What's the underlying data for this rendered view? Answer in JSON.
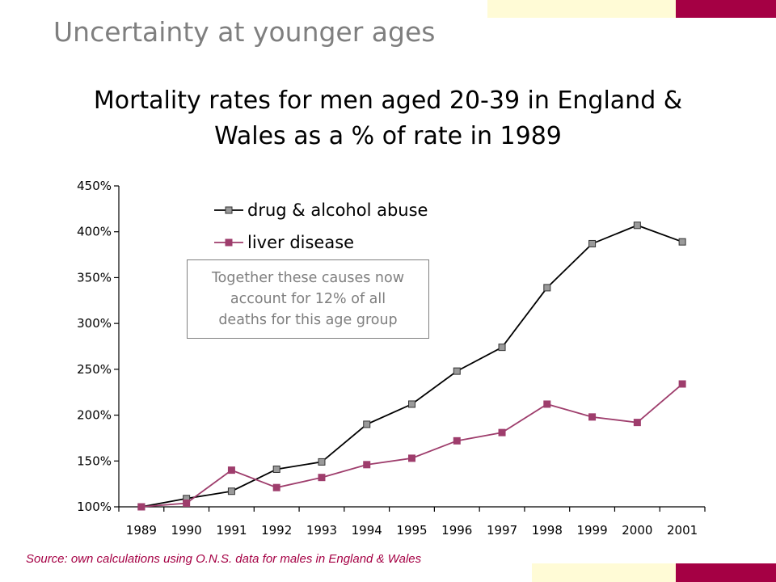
{
  "slide": {
    "title": "Uncertainty at younger ages",
    "source": "Source: own calculations using O.N.S. data for males in England & Wales"
  },
  "colors": {
    "accent": "#A50044",
    "cream": "#FFFBD6",
    "title_gray": "#7f7f7f",
    "series_drug": "#000000",
    "series_liver": "#9E3D6C"
  },
  "chart_data": {
    "type": "line",
    "title_lines": [
      "Mortality rates for men aged 20-39 in England &",
      "Wales as a % of rate in 1989"
    ],
    "categories": [
      "1989",
      "1990",
      "1991",
      "1992",
      "1993",
      "1994",
      "1995",
      "1996",
      "1997",
      "1998",
      "1999",
      "2000",
      "2001"
    ],
    "series": [
      {
        "name": "drug & alcohol abuse",
        "values": [
          100,
          109,
          117,
          141,
          149,
          190,
          212,
          248,
          274,
          339,
          387,
          407,
          389
        ]
      },
      {
        "name": "liver disease",
        "values": [
          100,
          104,
          140,
          121,
          132,
          146,
          153,
          172,
          181,
          212,
          198,
          192,
          234
        ]
      }
    ],
    "y_ticks": [
      "100%",
      "150%",
      "200%",
      "250%",
      "300%",
      "350%",
      "400%",
      "450%"
    ],
    "ylim": [
      100,
      450
    ],
    "grid": false,
    "legend": "top-left",
    "annotation_lines": [
      "Together these causes now",
      "account for 12% of all",
      "deaths for this age group"
    ]
  }
}
